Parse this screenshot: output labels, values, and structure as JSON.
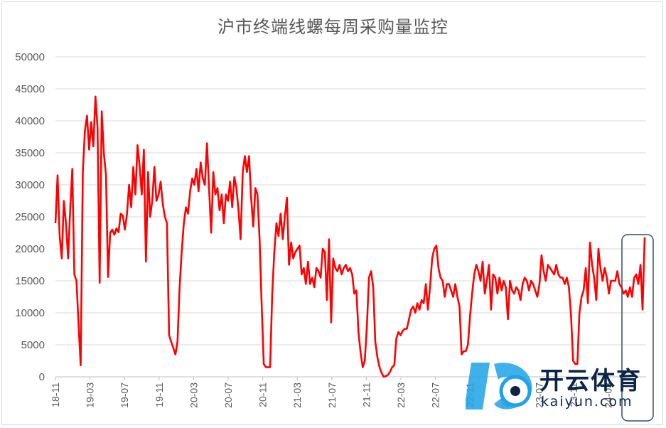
{
  "chart_data": {
    "type": "line",
    "title": "沪市终端线螺每周采购量监控",
    "xlabel": "",
    "ylabel": "",
    "ylim": [
      0,
      50000
    ],
    "yticks": [
      0,
      5000,
      10000,
      15000,
      20000,
      25000,
      30000,
      35000,
      40000,
      45000,
      50000
    ],
    "x_ticks": [
      "18-11",
      "19-03",
      "19-07",
      "19-11",
      "20-03",
      "20-07",
      "20-11",
      "21-03",
      "21-07",
      "21-11",
      "22-03",
      "22-07",
      "22-11",
      "23-03",
      "23-07",
      "23-11",
      "24-03"
    ],
    "grid": "horizontal",
    "highlight_box": "last three periods",
    "series": [
      {
        "color": "#ff0000",
        "values": [
          24000,
          31500,
          22000,
          18500,
          27500,
          24000,
          18500,
          26000,
          32500,
          16000,
          15000,
          8000,
          1800,
          32000,
          38500,
          40800,
          35500,
          39800,
          36000,
          43800,
          39000,
          14700,
          41500,
          35000,
          31500,
          15600,
          22500,
          23000,
          22200,
          23200,
          22600,
          25500,
          25200,
          23000,
          25500,
          30000,
          26500,
          32800,
          28500,
          36200,
          33000,
          28500,
          35500,
          18000,
          32000,
          25000,
          27500,
          32800,
          27500,
          28500,
          30500,
          27000,
          25000,
          24000,
          6500,
          5500,
          4500,
          3500,
          5500,
          14000,
          19500,
          24000,
          26500,
          25500,
          29000,
          31000,
          30000,
          32500,
          29000,
          33500,
          31000,
          30000,
          36500,
          29500,
          22500,
          32000,
          28500,
          29500,
          26000,
          28500,
          24000,
          28500,
          27500,
          30500,
          26500,
          31200,
          29500,
          26000,
          21500,
          32000,
          34500,
          32000,
          34500,
          28000,
          23500,
          29500,
          28500,
          21500,
          11000,
          2000,
          1500,
          1500,
          1500,
          13000,
          19500,
          24000,
          22000,
          25500,
          21500,
          25000,
          28000,
          17500,
          21000,
          18500,
          19500,
          20000,
          20500,
          16000,
          17000,
          14500,
          18000,
          14500,
          15500,
          14000,
          17000,
          16500,
          15500,
          20000,
          19500,
          12000,
          21500,
          8500,
          18500,
          17000,
          16500,
          17500,
          16000,
          17000,
          17500,
          16500,
          17000,
          16000,
          13000,
          13500,
          7000,
          3800,
          1500,
          2500,
          8000,
          15500,
          16500,
          14000,
          5500,
          3000,
          1500,
          600,
          0,
          100,
          300,
          800,
          1500,
          1800,
          6000,
          7000,
          6500,
          7200,
          7500,
          7500,
          9000,
          10500,
          11000,
          10000,
          11500,
          10500,
          12000,
          11500,
          14500,
          10500,
          14000,
          18500,
          20000,
          20500,
          17000,
          15500,
          15000,
          12500,
          14500,
          14500,
          13500,
          12500,
          14500,
          12500,
          11000,
          3500,
          4000,
          4000,
          5000,
          9500,
          13000,
          16000,
          17500,
          16500,
          15000,
          18000,
          13000,
          15000,
          17500,
          10500,
          16000,
          15500,
          13000,
          15500,
          13500,
          15000,
          14000,
          9000,
          15000,
          13500,
          13000,
          14000,
          13500,
          12000,
          14500,
          15500,
          15000,
          13500,
          15000,
          14500,
          13500,
          12500,
          14500,
          19000,
          16500,
          15000,
          17500,
          17000,
          16500,
          16000,
          17500,
          16000,
          15500,
          15500,
          14500,
          15500,
          14000,
          9500,
          2500,
          2000,
          2000,
          10000,
          12500,
          13500,
          17000,
          11500,
          21000,
          17500,
          15500,
          12000,
          20000,
          17000,
          15000,
          17000,
          15500,
          13000,
          15000,
          15000,
          15000,
          16500,
          14500,
          14000,
          13000,
          13500,
          12500,
          14000,
          12500,
          15500,
          16000,
          14500,
          17500,
          10500,
          21800
        ]
      }
    ]
  },
  "watermark": {
    "cn": "开云体育",
    "en": "kaiyun.com",
    "icon": "kaiyun-logo-icon"
  },
  "colors": {
    "line": "#ff0000",
    "grid": "#d9d9d9",
    "axis_text": "#595959",
    "highlight": "#2f4f6f",
    "watermark_blue": "#1fa2e8",
    "watermark_dark": "#0b2545"
  }
}
